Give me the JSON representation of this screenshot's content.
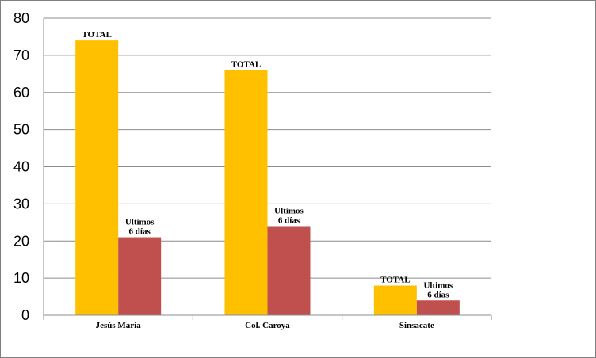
{
  "chart_data": {
    "type": "bar",
    "categories": [
      "Jesús María",
      "Col. Caroya",
      "Sinsacate"
    ],
    "series": [
      {
        "values": [
          74,
          66,
          8
        ],
        "color": "#FFC000",
        "data_label": "TOTAL"
      },
      {
        "values": [
          21,
          24,
          4
        ],
        "color": "#C0504D",
        "data_label": "Ultimos 6 días"
      }
    ],
    "y_ticks": [
      "0",
      "10",
      "20",
      "30",
      "40",
      "50",
      "60",
      "70",
      "80"
    ],
    "ylim": [
      0,
      80
    ],
    "grid": true,
    "legend": "none"
  }
}
